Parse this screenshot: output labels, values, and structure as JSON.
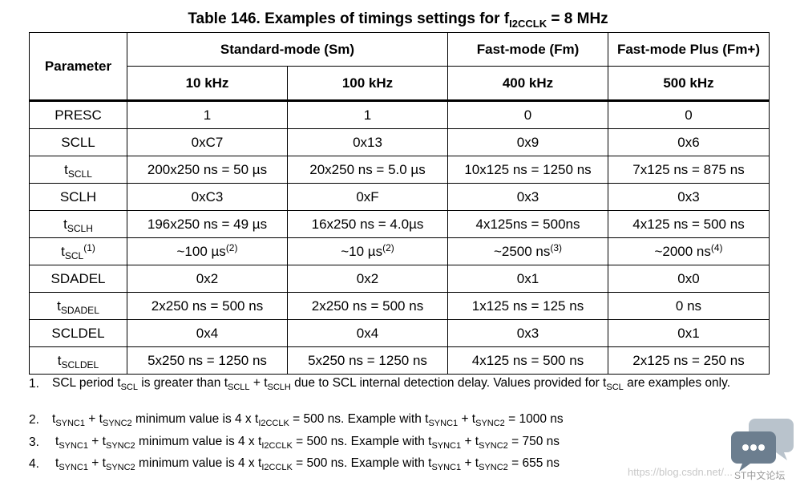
{
  "title": {
    "prefix": "Table 146. Examples of timings settings for f",
    "sub": "I2CCLK",
    "suffix": " = 8 MHz"
  },
  "header": {
    "parameter": "Parameter",
    "groups": [
      "Standard-mode (Sm)",
      "Fast-mode (Fm)",
      "Fast-mode Plus (Fm+)"
    ],
    "freqs": [
      "10 kHz",
      "100 kHz",
      "400 kHz",
      "500 kHz"
    ]
  },
  "rows": [
    {
      "param": "PRESC",
      "sub": "",
      "sup": "",
      "cells": [
        [
          "1",
          ""
        ],
        [
          "1",
          ""
        ],
        [
          "0",
          ""
        ],
        [
          "0",
          ""
        ]
      ]
    },
    {
      "param": "SCLL",
      "sub": "",
      "sup": "",
      "cells": [
        [
          "0xC7",
          ""
        ],
        [
          "0x13",
          ""
        ],
        [
          "0x9",
          ""
        ],
        [
          "0x6",
          ""
        ]
      ]
    },
    {
      "param": "t",
      "sub": "SCLL",
      "sup": "",
      "cells": [
        [
          "200x250 ns = 50 µs",
          ""
        ],
        [
          "20x250 ns = 5.0 µs",
          ""
        ],
        [
          "10x125 ns = 1250 ns",
          ""
        ],
        [
          "7x125 ns = 875 ns",
          ""
        ]
      ]
    },
    {
      "param": "SCLH",
      "sub": "",
      "sup": "",
      "cells": [
        [
          "0xC3",
          ""
        ],
        [
          "0xF",
          ""
        ],
        [
          "0x3",
          ""
        ],
        [
          "0x3",
          ""
        ]
      ]
    },
    {
      "param": "t",
      "sub": "SCLH",
      "sup": "",
      "cells": [
        [
          "196x250 ns = 49 µs",
          ""
        ],
        [
          "16x250 ns = 4.0µs",
          ""
        ],
        [
          "4x125ns = 500ns",
          ""
        ],
        [
          "4x125 ns = 500 ns",
          ""
        ]
      ]
    },
    {
      "param": "t",
      "sub": "SCL",
      "sup": "(1)",
      "cells": [
        [
          "~100 µs",
          "(2)"
        ],
        [
          "~10 µs",
          "(2)"
        ],
        [
          "~2500 ns",
          "(3)"
        ],
        [
          "~2000 ns",
          "(4)"
        ]
      ]
    },
    {
      "param": "SDADEL",
      "sub": "",
      "sup": "",
      "cells": [
        [
          "0x2",
          ""
        ],
        [
          "0x2",
          ""
        ],
        [
          "0x1",
          ""
        ],
        [
          "0x0",
          ""
        ]
      ]
    },
    {
      "param": "t",
      "sub": "SDADEL",
      "sup": "",
      "cells": [
        [
          "2x250 ns = 500 ns",
          ""
        ],
        [
          "2x250 ns = 500 ns",
          ""
        ],
        [
          "1x125 ns = 125 ns",
          ""
        ],
        [
          "0 ns",
          ""
        ]
      ]
    },
    {
      "param": "SCLDEL",
      "sub": "",
      "sup": "",
      "cells": [
        [
          "0x4",
          ""
        ],
        [
          "0x4",
          ""
        ],
        [
          "0x3",
          ""
        ],
        [
          "0x1",
          ""
        ]
      ]
    },
    {
      "param": "t",
      "sub": "SCLDEL",
      "sup": "",
      "cells": [
        [
          "5x250 ns = 1250 ns",
          ""
        ],
        [
          "5x250 ns = 1250 ns",
          ""
        ],
        [
          "4x125 ns = 500 ns",
          ""
        ],
        [
          "2x125 ns = 250 ns",
          ""
        ]
      ]
    }
  ],
  "notes": [
    {
      "num": "1.",
      "parts": [
        [
          "SCL period t",
          ""
        ],
        [
          "",
          "SCL"
        ],
        [
          " is greater than t",
          ""
        ],
        [
          "",
          "SCLL"
        ],
        [
          " + t",
          ""
        ],
        [
          "",
          "SCLH"
        ],
        [
          " due to SCL internal detection delay. Values provided for t",
          ""
        ],
        [
          "",
          "SCL"
        ],
        [
          " are examples only.",
          ""
        ]
      ]
    },
    {
      "num": "2.",
      "parts": [
        [
          "t",
          ""
        ],
        [
          "",
          "SYNC1"
        ],
        [
          " + t",
          ""
        ],
        [
          "",
          "SYNC2"
        ],
        [
          " minimum value is 4 x t",
          ""
        ],
        [
          "",
          "I2CCLK"
        ],
        [
          " = 500 ns. Example with t",
          ""
        ],
        [
          "",
          "SYNC1"
        ],
        [
          " + t",
          ""
        ],
        [
          "",
          "SYNC2"
        ],
        [
          " = 1000 ns",
          ""
        ]
      ]
    },
    {
      "num": "3.",
      "parts": [
        [
          "t",
          ""
        ],
        [
          "",
          "SYNC1"
        ],
        [
          " + t",
          ""
        ],
        [
          "",
          "SYNC2"
        ],
        [
          " minimum value is 4 x t",
          ""
        ],
        [
          "",
          "I2CCLK"
        ],
        [
          " = 500 ns. Example with t",
          ""
        ],
        [
          "",
          "SYNC1"
        ],
        [
          " + t",
          ""
        ],
        [
          "",
          "SYNC2"
        ],
        [
          " = 750 ns",
          ""
        ]
      ]
    },
    {
      "num": "4.",
      "parts": [
        [
          "t",
          ""
        ],
        [
          "",
          "SYNC1"
        ],
        [
          " + t",
          ""
        ],
        [
          "",
          "SYNC2"
        ],
        [
          " minimum value is 4 x t",
          ""
        ],
        [
          "",
          "I2CCLK"
        ],
        [
          " = 500 ns. Example with t",
          ""
        ],
        [
          "",
          "SYNC1"
        ],
        [
          " + t",
          ""
        ],
        [
          "",
          "SYNC2"
        ],
        [
          " = 655 ns",
          ""
        ]
      ]
    }
  ],
  "watermark": {
    "url": "https://blog.csdn.net/...",
    "brand": "ST中文论坛",
    "icon": "chat-bubbles-icon"
  }
}
